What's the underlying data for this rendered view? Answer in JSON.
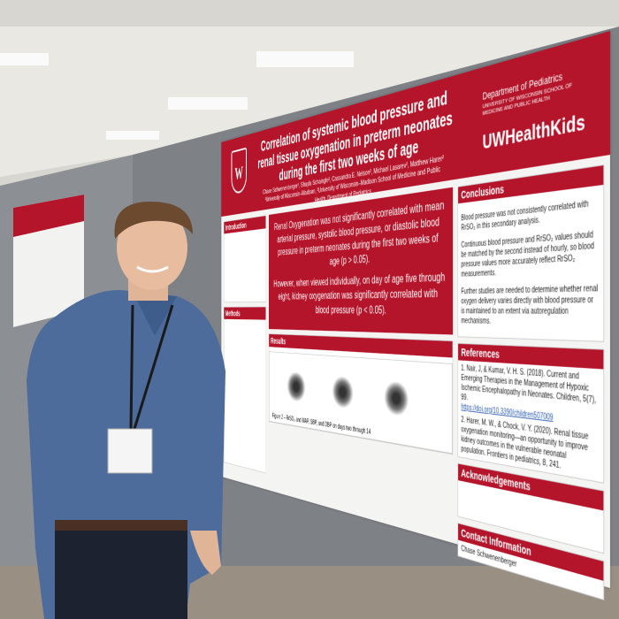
{
  "poster": {
    "title": "Correlation of systemic blood pressure and renal tissue oxygenation in preterm neonates during the first two weeks of age",
    "authors": "Chase Schwenenberger¹, Shayla Schaingle¹, Cassandra E. Nelson², Michael Lasarev², Matthew Harer²",
    "affiliations": "¹University of Wisconsin–Madison, ²University of Wisconsin–Madison School of Medicine and Public Health, Department of Pediatrics",
    "department": "Department of Pediatrics",
    "department_sub": "UNIVERSITY OF WISCONSIN SCHOOL OF MEDICINE AND PUBLIC HEALTH",
    "brand": "UWHealthKids",
    "key_findings": [
      "Renal Oxygenation was not significantly correlated with mean arterial pressure, systolic blood pressure, or diastolic blood pressure in preterm neonates during the first two weeks of age (p > 0.05).",
      "However, when viewed individually, on day of age five through eight, kidney oxygenation was significantly correlated with blood pressure (p < 0.05)."
    ],
    "sections": {
      "introduction": "Introduction",
      "methods": "Methods",
      "results": "Results",
      "conclusions": {
        "heading": "Conclusions",
        "items": [
          "Blood pressure was not consistently correlated with RrSO₂ in this secondary analysis.",
          "Continuous blood pressure and RrSO₂ values should be matched by the second instead of hourly, so blood pressure values more accurately reflect RrSO₂ measurements.",
          "Further studies are needed to determine whether renal oxygen delivery varies directly with blood pressure or is maintained to an extent via autoregulation mechanisms."
        ]
      },
      "references": {
        "heading": "References",
        "items": [
          "1. Nair, J, & Kumar, V. H. S. (2018). Current and Emerging Therapies in the Management of Hypoxic Ischemic Encephalopathy in Neonates. Children, 5(7), 99.",
          "2. Harer, M. W., & Chock, V. Y. (2020). Renal tissue oxygenation monitoring—an opportunity to improve kidney outcomes in the vulnerable neonatal population. Frontiers in pediatrics, 8, 241."
        ],
        "link": "https://doi.org/10.3390/children507009"
      },
      "acknowledgements": "Acknowledgements",
      "contact": {
        "heading": "Contact Information",
        "text": "Chase Schwenenberger"
      },
      "figure_caption": "Figure 2 – RrSO₂ and MAP, SBP, and DBP on days two through 14"
    }
  }
}
